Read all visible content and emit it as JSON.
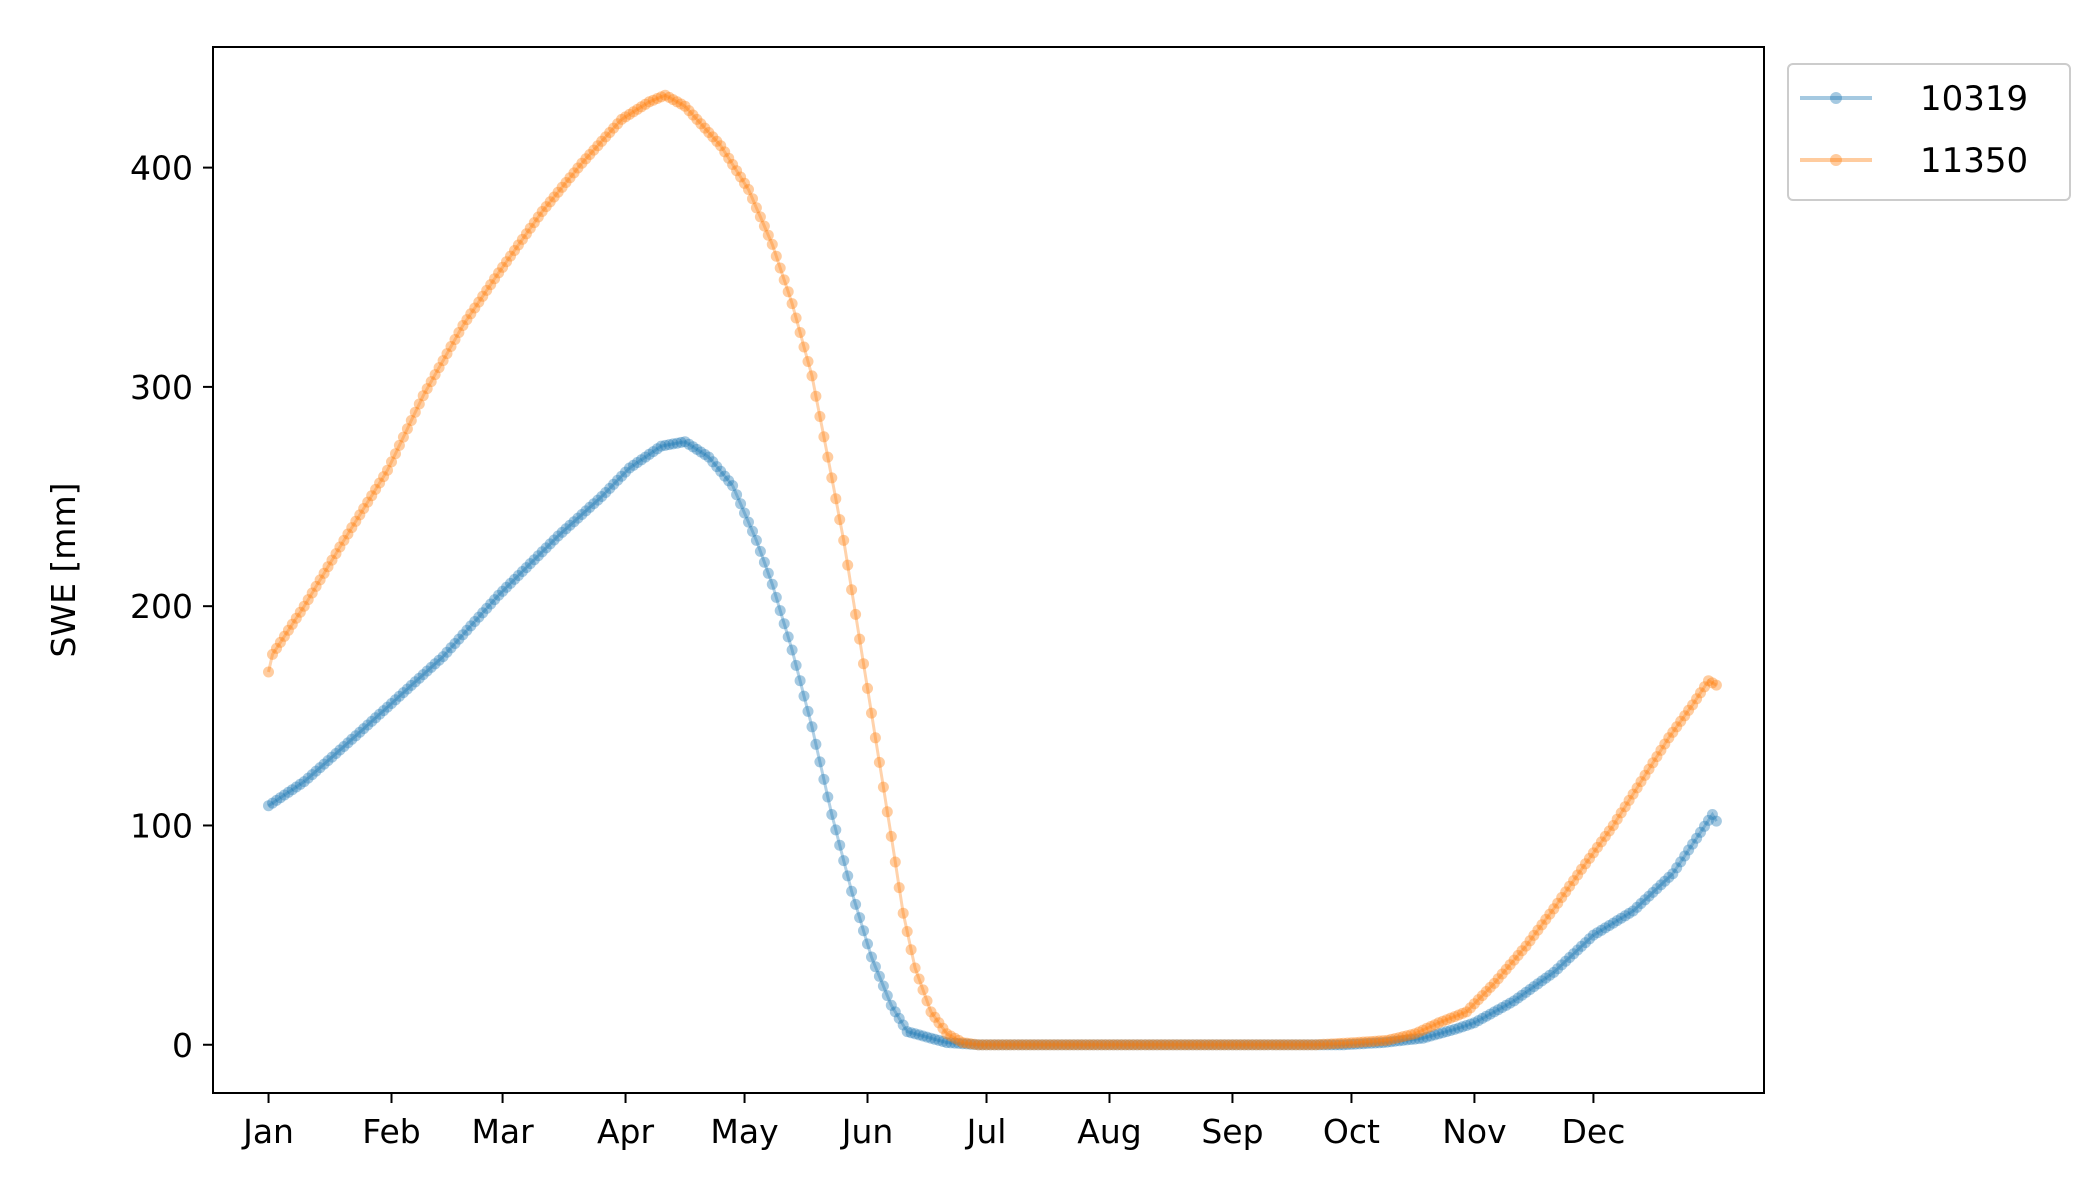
{
  "chart_data": {
    "type": "line",
    "title": "",
    "xlabel": "",
    "ylabel": "SWE [mm]",
    "categories": [
      "Jan",
      "Feb",
      "Mar",
      "Apr",
      "May",
      "Jun",
      "Jul",
      "Aug",
      "Sep",
      "Oct",
      "Nov",
      "Dec"
    ],
    "x_unit": "day of year",
    "xlim": [
      -13,
      378
    ],
    "ylim": [
      -22,
      455
    ],
    "yticks": [
      0,
      100,
      200,
      300,
      400
    ],
    "grid": false,
    "legend_position": "outside-top-right",
    "marker": "circle",
    "series": [
      {
        "name": "10319",
        "color": "#1f77b4",
        "points": [
          [
            1,
            109
          ],
          [
            10,
            120
          ],
          [
            20,
            136
          ],
          [
            31,
            154
          ],
          [
            45,
            177
          ],
          [
            59,
            205
          ],
          [
            74,
            232
          ],
          [
            85,
            250
          ],
          [
            92,
            263
          ],
          [
            100,
            273
          ],
          [
            106,
            275
          ],
          [
            112,
            268
          ],
          [
            118,
            255
          ],
          [
            124,
            230
          ],
          [
            128,
            210
          ],
          [
            133,
            180
          ],
          [
            138,
            145
          ],
          [
            143,
            105
          ],
          [
            148,
            70
          ],
          [
            153,
            40
          ],
          [
            158,
            18
          ],
          [
            162,
            6
          ],
          [
            166,
            4
          ],
          [
            172,
            1
          ],
          [
            180,
            0
          ],
          [
            272,
            0
          ],
          [
            282,
            1
          ],
          [
            292,
            3
          ],
          [
            300,
            7
          ],
          [
            305,
            10
          ],
          [
            315,
            20
          ],
          [
            325,
            33
          ],
          [
            335,
            50
          ],
          [
            345,
            61
          ],
          [
            355,
            78
          ],
          [
            365,
            105
          ],
          [
            366,
            102
          ]
        ]
      },
      {
        "name": "11350",
        "color": "#ff7f0e",
        "points": [
          [
            1,
            170
          ],
          [
            2,
            178
          ],
          [
            10,
            200
          ],
          [
            20,
            230
          ],
          [
            31,
            262
          ],
          [
            40,
            296
          ],
          [
            50,
            328
          ],
          [
            59,
            352
          ],
          [
            70,
            380
          ],
          [
            80,
            402
          ],
          [
            90,
            422
          ],
          [
            97,
            430
          ],
          [
            101,
            433
          ],
          [
            106,
            428
          ],
          [
            115,
            410
          ],
          [
            122,
            390
          ],
          [
            128,
            365
          ],
          [
            133,
            338
          ],
          [
            138,
            305
          ],
          [
            142,
            268
          ],
          [
            146,
            230
          ],
          [
            150,
            185
          ],
          [
            154,
            140
          ],
          [
            158,
            95
          ],
          [
            161,
            60
          ],
          [
            164,
            35
          ],
          [
            168,
            15
          ],
          [
            172,
            5
          ],
          [
            176,
            1
          ],
          [
            180,
            0
          ],
          [
            265,
            0
          ],
          [
            275,
            1
          ],
          [
            283,
            2
          ],
          [
            290,
            5
          ],
          [
            296,
            10
          ],
          [
            303,
            15
          ],
          [
            310,
            28
          ],
          [
            318,
            45
          ],
          [
            325,
            62
          ],
          [
            332,
            80
          ],
          [
            340,
            100
          ],
          [
            347,
            120
          ],
          [
            354,
            140
          ],
          [
            360,
            155
          ],
          [
            364,
            166
          ],
          [
            366,
            164
          ]
        ]
      }
    ]
  }
}
